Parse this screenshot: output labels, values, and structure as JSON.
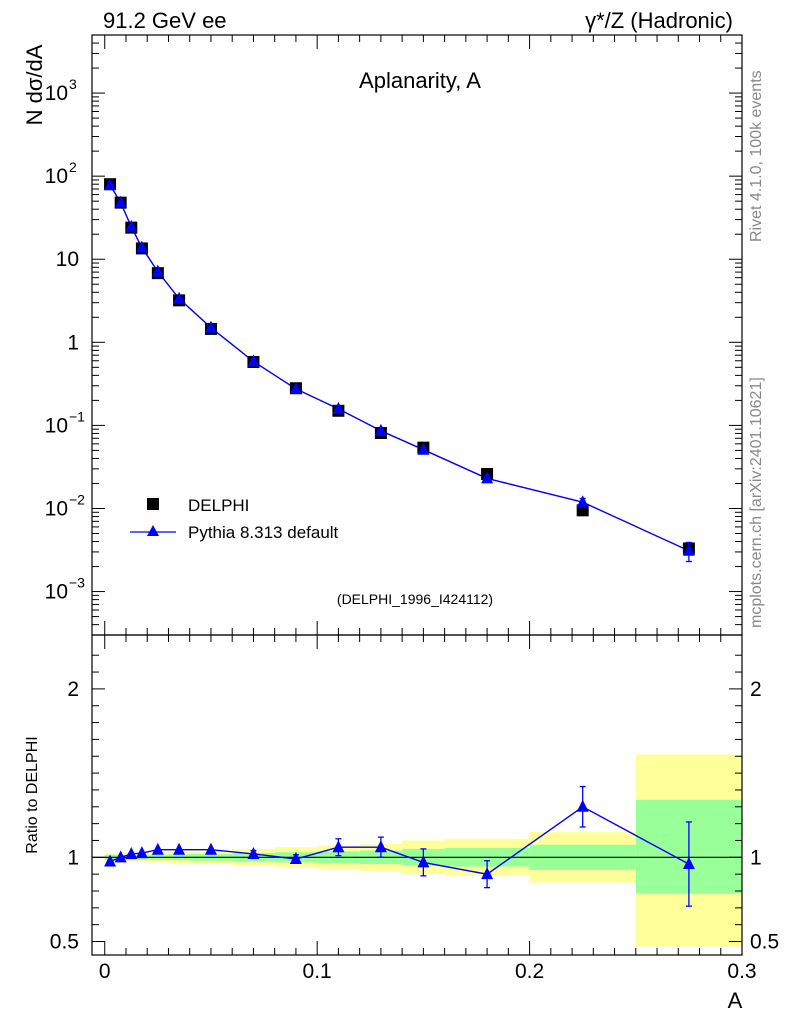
{
  "header": {
    "left": "91.2 GeV ee",
    "right": "γ*/Z (Hadronic)"
  },
  "side_labels": {
    "rivet": "Rivet 4.1.0,  100k events",
    "mcplots": "mcplots.cern.ch [arXiv:2401.10621]"
  },
  "colors": {
    "data": "#000000",
    "mc": "#0000ff",
    "band_inner": "#99ff99",
    "band_outer": "#ffff99",
    "watermark": "#888888"
  },
  "chart_data": [
    {
      "id": "main",
      "type": "scatter",
      "title": "Aplanarity, A",
      "ylabel": "N  dσ/dA",
      "ylog": true,
      "xlim": [
        -0.006,
        0.3
      ],
      "ylim": [
        0.0003,
        5000
      ],
      "annotation": "(DELPHI_1996_I424112)",
      "y_ticks": [
        {
          "value": 0.001,
          "base": "10",
          "exp": "−3"
        },
        {
          "value": 0.01,
          "base": "10",
          "exp": "−2"
        },
        {
          "value": 0.1,
          "base": "10",
          "exp": "−1"
        },
        {
          "value": 1,
          "base": "1",
          "exp": ""
        },
        {
          "value": 10,
          "base": "10",
          "exp": ""
        },
        {
          "value": 100,
          "base": "10",
          "exp": "2"
        },
        {
          "value": 1000,
          "base": "10",
          "exp": "3"
        }
      ],
      "legend": {
        "position": "bottom-left",
        "entries": [
          "DELPHI",
          "Pythia 8.313 default"
        ]
      },
      "series": [
        {
          "name": "DELPHI",
          "marker": "square",
          "x": [
            0.0025,
            0.0075,
            0.0125,
            0.0175,
            0.025,
            0.035,
            0.05,
            0.07,
            0.09,
            0.11,
            0.13,
            0.15,
            0.18,
            0.225,
            0.275
          ],
          "y": [
            80,
            48,
            24,
            13.5,
            6.8,
            3.2,
            1.45,
            0.58,
            0.28,
            0.15,
            0.081,
            0.054,
            0.026,
            0.0095,
            0.0033
          ],
          "yerr": [
            0,
            0,
            0,
            0,
            0,
            0,
            0,
            0,
            0,
            0,
            0,
            0,
            0,
            0,
            0
          ]
        },
        {
          "name": "Pythia 8.313 default",
          "marker": "triangle",
          "line": true,
          "x": [
            0.0025,
            0.0075,
            0.0125,
            0.0175,
            0.025,
            0.035,
            0.05,
            0.07,
            0.09,
            0.11,
            0.13,
            0.15,
            0.18,
            0.225,
            0.275
          ],
          "y": [
            78,
            48,
            24.5,
            13.8,
            7.1,
            3.35,
            1.5,
            0.59,
            0.275,
            0.158,
            0.086,
            0.051,
            0.023,
            0.0119,
            0.0031
          ],
          "yerr": [
            0,
            0,
            0,
            0,
            0,
            0,
            0,
            0,
            0,
            0.005,
            0.005,
            0.003,
            0.0015,
            0.0013,
            0.0008
          ]
        }
      ]
    },
    {
      "id": "ratio",
      "type": "scatter",
      "ylabel": "Ratio to DELPHI",
      "xlabel": "A",
      "xlim": [
        -0.006,
        0.3
      ],
      "ylim": [
        0.42,
        2.32
      ],
      "x_ticks": [
        {
          "value": 0,
          "label": "0"
        },
        {
          "value": 0.1,
          "label": "0.1"
        },
        {
          "value": 0.2,
          "label": "0.2"
        },
        {
          "value": 0.3,
          "label": "0.3"
        }
      ],
      "y_ticks": [
        {
          "value": 0.5,
          "label": "0.5"
        },
        {
          "value": 1,
          "label": "1"
        },
        {
          "value": 2,
          "label": "2"
        }
      ],
      "bands": [
        {
          "x0": 0.0,
          "x1": 0.005,
          "outer": [
            0.975,
            1.025
          ],
          "inner": [
            0.985,
            1.015
          ]
        },
        {
          "x0": 0.005,
          "x1": 0.01,
          "outer": [
            0.975,
            1.025
          ],
          "inner": [
            0.985,
            1.015
          ]
        },
        {
          "x0": 0.01,
          "x1": 0.015,
          "outer": [
            0.975,
            1.025
          ],
          "inner": [
            0.985,
            1.015
          ]
        },
        {
          "x0": 0.015,
          "x1": 0.02,
          "outer": [
            0.975,
            1.025
          ],
          "inner": [
            0.985,
            1.015
          ]
        },
        {
          "x0": 0.02,
          "x1": 0.03,
          "outer": [
            0.97,
            1.03
          ],
          "inner": [
            0.985,
            1.015
          ]
        },
        {
          "x0": 0.03,
          "x1": 0.04,
          "outer": [
            0.965,
            1.035
          ],
          "inner": [
            0.983,
            1.017
          ]
        },
        {
          "x0": 0.04,
          "x1": 0.06,
          "outer": [
            0.96,
            1.04
          ],
          "inner": [
            0.98,
            1.02
          ]
        },
        {
          "x0": 0.06,
          "x1": 0.08,
          "outer": [
            0.95,
            1.05
          ],
          "inner": [
            0.975,
            1.025
          ]
        },
        {
          "x0": 0.08,
          "x1": 0.1,
          "outer": [
            0.94,
            1.06
          ],
          "inner": [
            0.97,
            1.03
          ]
        },
        {
          "x0": 0.1,
          "x1": 0.12,
          "outer": [
            0.93,
            1.07
          ],
          "inner": [
            0.965,
            1.035
          ]
        },
        {
          "x0": 0.12,
          "x1": 0.14,
          "outer": [
            0.92,
            1.08
          ],
          "inner": [
            0.96,
            1.04
          ]
        },
        {
          "x0": 0.14,
          "x1": 0.16,
          "outer": [
            0.9,
            1.1
          ],
          "inner": [
            0.95,
            1.05
          ]
        },
        {
          "x0": 0.16,
          "x1": 0.2,
          "outer": [
            0.89,
            1.11
          ],
          "inner": [
            0.945,
            1.055
          ]
        },
        {
          "x0": 0.2,
          "x1": 0.25,
          "outer": [
            0.85,
            1.15
          ],
          "inner": [
            0.925,
            1.075
          ]
        },
        {
          "x0": 0.25,
          "x1": 0.3,
          "outer": [
            0.47,
            1.61
          ],
          "inner": [
            0.785,
            1.34
          ]
        }
      ],
      "reference": 1,
      "series": [
        {
          "name": "Pythia 8.313 default / DELPHI",
          "marker": "triangle",
          "line": true,
          "x": [
            0.0025,
            0.0075,
            0.0125,
            0.0175,
            0.025,
            0.035,
            0.05,
            0.07,
            0.09,
            0.11,
            0.13,
            0.15,
            0.18,
            0.225,
            0.275
          ],
          "y": [
            0.975,
            1.0,
            1.02,
            1.025,
            1.045,
            1.045,
            1.045,
            1.02,
            0.99,
            1.06,
            1.06,
            0.97,
            0.9,
            1.3,
            0.96
          ],
          "yerr": [
            0.005,
            0.005,
            0.005,
            0.005,
            0.005,
            0.006,
            0.006,
            0.02,
            0.025,
            0.05,
            0.06,
            0.08,
            0.08,
            0.12,
            0.25
          ]
        }
      ]
    }
  ]
}
